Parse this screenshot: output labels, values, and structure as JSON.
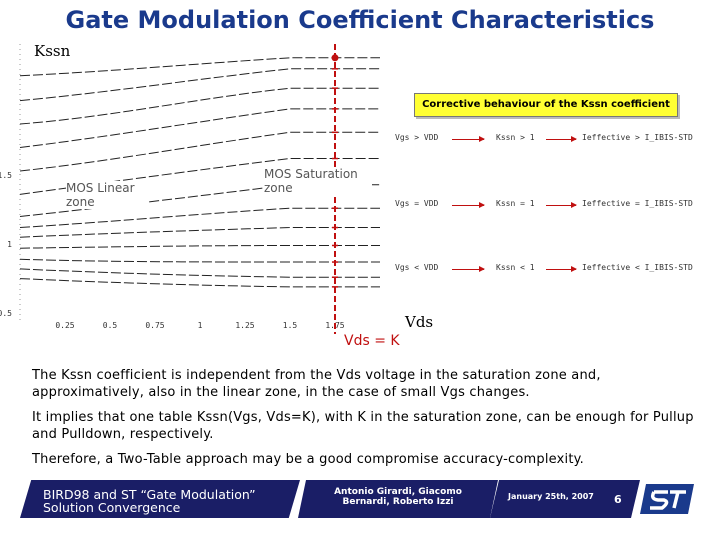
{
  "title": "Gate Modulation Coefficient Characteristics",
  "chart_data": {
    "type": "line",
    "ylabel": "Kssn",
    "xlabel": "Vds",
    "marker_label": "Vds = K",
    "x_ticks": [
      "0.25",
      "0.5",
      "0.75",
      "1",
      "1.25",
      "1.5",
      "1.75"
    ],
    "y_ticks": [
      "1.5",
      "1",
      "0.5"
    ],
    "xlim": [
      0,
      2
    ],
    "ylim": [
      0.45,
      2.45
    ],
    "marker_x": 1.75,
    "zones": {
      "linear": "MOS Linear zone",
      "saturation": "MOS Saturation zone"
    },
    "series": [
      {
        "x": [
          0,
          0.5,
          1,
          1.5,
          2
        ],
        "y": [
          2.22,
          2.25,
          2.31,
          2.35,
          2.35
        ]
      },
      {
        "x": [
          0,
          0.5,
          1,
          1.5,
          2
        ],
        "y": [
          2.04,
          2.1,
          2.2,
          2.27,
          2.27
        ]
      },
      {
        "x": [
          0,
          0.5,
          1,
          1.5,
          2
        ],
        "y": [
          1.87,
          1.92,
          2.06,
          2.13,
          2.13
        ]
      },
      {
        "x": [
          0,
          0.5,
          1,
          1.5,
          2
        ],
        "y": [
          1.7,
          1.78,
          1.89,
          1.98,
          1.98
        ]
      },
      {
        "x": [
          0,
          0.5,
          1,
          1.5,
          2
        ],
        "y": [
          1.53,
          1.6,
          1.72,
          1.81,
          1.81
        ]
      },
      {
        "x": [
          0,
          0.5,
          1,
          1.5,
          2
        ],
        "y": [
          1.36,
          1.45,
          1.54,
          1.62,
          1.62
        ]
      },
      {
        "x": [
          0,
          0.5,
          1,
          1.5,
          2
        ],
        "y": [
          1.2,
          1.27,
          1.35,
          1.43,
          1.43
        ]
      },
      {
        "x": [
          0,
          0.5,
          1,
          1.5,
          2
        ],
        "y": [
          1.12,
          1.16,
          1.22,
          1.26,
          1.26
        ]
      },
      {
        "x": [
          0,
          0.5,
          1,
          1.5,
          2
        ],
        "y": [
          1.05,
          1.08,
          1.1,
          1.12,
          1.12
        ]
      },
      {
        "x": [
          0,
          0.5,
          1,
          1.5,
          2
        ],
        "y": [
          0.97,
          0.98,
          0.99,
          0.99,
          0.99
        ]
      },
      {
        "x": [
          0,
          0.5,
          1,
          1.5,
          2
        ],
        "y": [
          0.89,
          0.87,
          0.87,
          0.87,
          0.87
        ]
      },
      {
        "x": [
          0,
          0.5,
          1,
          1.5,
          2
        ],
        "y": [
          0.82,
          0.79,
          0.77,
          0.76,
          0.76
        ]
      },
      {
        "x": [
          0,
          0.5,
          1,
          1.5,
          2
        ],
        "y": [
          0.75,
          0.72,
          0.7,
          0.69,
          0.69
        ]
      }
    ]
  },
  "callout": {
    "title": "Corrective behaviour of the Kssn coefficient",
    "rows": [
      {
        "cond": "Vgs > VDD",
        "kssn": "Kssn > 1",
        "eff": "Ieffective > I_IBIS-STD"
      },
      {
        "cond": "Vgs = VDD",
        "kssn": "Kssn = 1",
        "eff": "Ieffective = I_IBIS-STD"
      },
      {
        "cond": "Vgs < VDD",
        "kssn": "Kssn < 1",
        "eff": "Ieffective < I_IBIS-STD"
      }
    ]
  },
  "paragraphs": [
    "The Kssn coefficient is independent from the Vds voltage in the saturation zone and, approximatively, also in the linear zone, in the case of small Vgs changes.",
    "It implies that one table Kssn(Vgs, Vds=K), with K in the saturation zone,  can be enough for Pullup and Pulldown, respectively.",
    "Therefore, a Two-Table approach may be a good compromise accuracy-complexity."
  ],
  "footer": {
    "title_line1": "BIRD98 and ST “Gate Modulation”",
    "title_line2": "Solution Convergence",
    "authors_line1": "Antonio Girardi, Giacomo",
    "authors_line2": "Bernardi, Roberto Izzi",
    "date": "January 25th, 2007",
    "page": "6"
  },
  "colors": {
    "title": "#1a3a8c",
    "accent": "#c01010",
    "footer": "#1a1e66",
    "callout": "#ffff33"
  }
}
